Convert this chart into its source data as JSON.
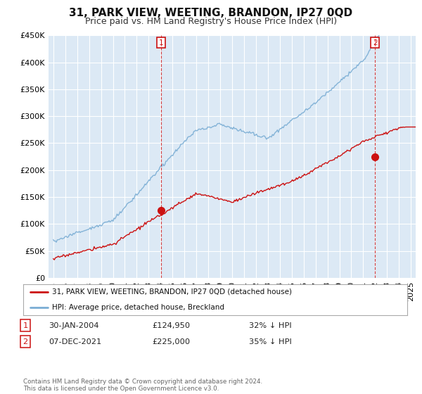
{
  "title": "31, PARK VIEW, WEETING, BRANDON, IP27 0QD",
  "subtitle": "Price paid vs. HM Land Registry's House Price Index (HPI)",
  "ylim": [
    0,
    450000
  ],
  "yticks": [
    0,
    50000,
    100000,
    150000,
    200000,
    250000,
    300000,
    350000,
    400000,
    450000
  ],
  "ytick_labels": [
    "£0",
    "£50K",
    "£100K",
    "£150K",
    "£200K",
    "£250K",
    "£300K",
    "£350K",
    "£400K",
    "£450K"
  ],
  "hpi_color": "#7aadd4",
  "price_color": "#cc1111",
  "marker1_label": "1",
  "marker2_label": "2",
  "marker1_price": 124950,
  "marker2_price": 225000,
  "legend_line1": "31, PARK VIEW, WEETING, BRANDON, IP27 0QD (detached house)",
  "legend_line2": "HPI: Average price, detached house, Breckland",
  "table_row1": [
    "1",
    "30-JAN-2004",
    "£124,950",
    "32% ↓ HPI"
  ],
  "table_row2": [
    "2",
    "07-DEC-2021",
    "£225,000",
    "35% ↓ HPI"
  ],
  "footer": "Contains HM Land Registry data © Crown copyright and database right 2024.\nThis data is licensed under the Open Government Licence v3.0.",
  "background_color": "#ffffff",
  "chart_bg_color": "#dce9f5",
  "grid_color": "#ffffff",
  "title_fontsize": 11,
  "subtitle_fontsize": 9,
  "tick_fontsize": 8
}
